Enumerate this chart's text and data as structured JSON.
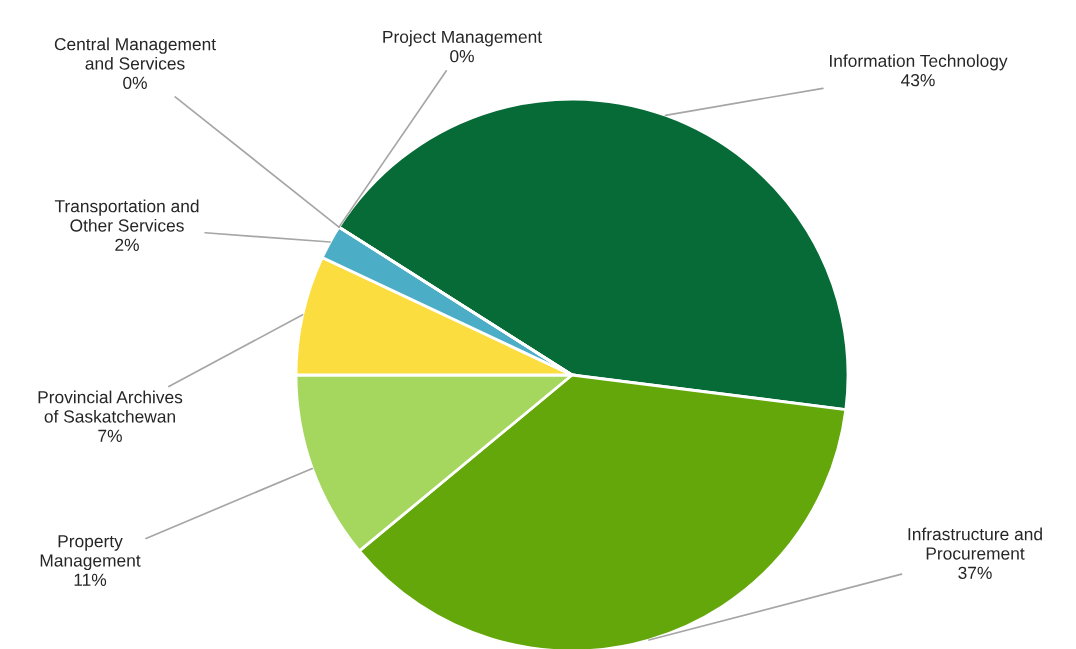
{
  "chart_data": {
    "type": "pie",
    "categories": [
      "Information Technology",
      "Infrastructure and\nProcurement",
      "Property\nManagement",
      "Provincial Archives\nof Saskatchewan",
      "Transportation and\nOther Services",
      "Central Management\nand Services",
      "Project Management"
    ],
    "values": [
      43,
      37,
      11,
      7,
      2,
      0,
      0
    ],
    "colors": [
      "#076b37",
      "#64a70b",
      "#a5d75e",
      "#fbdd40",
      "#4badc6",
      "#7f7f7f",
      "#bfbfbf"
    ],
    "value_labels": [
      "43%",
      "37%",
      "11%",
      "7%",
      "2%",
      "0%",
      "0%"
    ]
  }
}
